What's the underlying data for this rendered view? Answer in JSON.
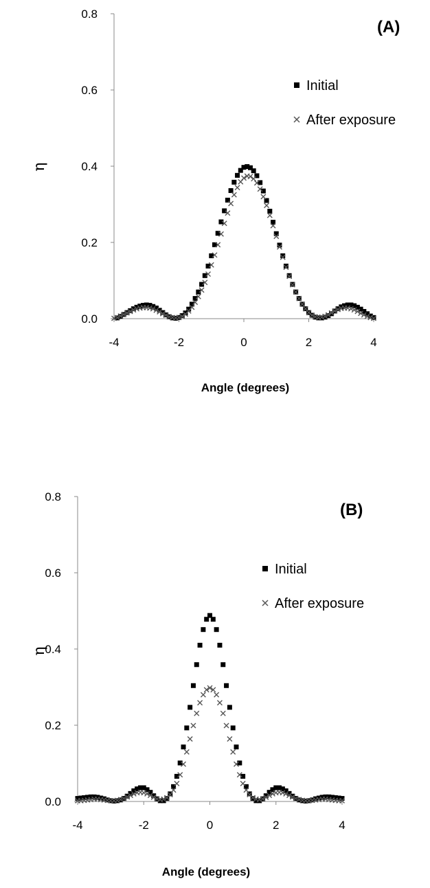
{
  "chart_data": [
    {
      "type": "scatter",
      "panel_label": "(A)",
      "xlabel": "Angle (degrees)",
      "ylabel": "η",
      "xlim": [
        -4,
        4
      ],
      "ylim": [
        0,
        0.8
      ],
      "xticks": [
        "-4",
        "-2",
        "0",
        "2",
        "4"
      ],
      "yticks": [
        "0.0",
        "0.2",
        "0.4",
        "0.6",
        "0.8"
      ],
      "legend_position": "right, below panel label",
      "series": [
        {
          "name": "Initial",
          "marker": "square",
          "color": "#000000",
          "x": [
            -3.9,
            -3.8,
            -3.7,
            -3.6,
            -3.5,
            -3.4,
            -3.3,
            -3.2,
            -3.1,
            -3.0,
            -2.9,
            -2.8,
            -2.7,
            -2.6,
            -2.5,
            -2.4,
            -2.3,
            -2.2,
            -2.1,
            -2.0,
            -1.9,
            -1.8,
            -1.7,
            -1.6,
            -1.5,
            -1.4,
            -1.3,
            -1.2,
            -1.1,
            -1.0,
            -0.9,
            -0.8,
            -0.7,
            -0.6,
            -0.5,
            -0.4,
            -0.3,
            -0.2,
            -0.1,
            0.0,
            0.1,
            0.2,
            0.3,
            0.4,
            0.5,
            0.6,
            0.7,
            0.8,
            0.9,
            1.0,
            1.1,
            1.2,
            1.3,
            1.4,
            1.5,
            1.6,
            1.7,
            1.8,
            1.9,
            2.0,
            2.1,
            2.2,
            2.3,
            2.4,
            2.5,
            2.6,
            2.7,
            2.8,
            2.9,
            3.0,
            3.1,
            3.2,
            3.3,
            3.4,
            3.5,
            3.6,
            3.7,
            3.8,
            3.9,
            4.0
          ],
          "y": [
            0.002,
            0.006,
            0.011,
            0.016,
            0.021,
            0.026,
            0.03,
            0.033,
            0.035,
            0.036,
            0.035,
            0.032,
            0.028,
            0.022,
            0.016,
            0.01,
            0.005,
            0.002,
            0.001,
            0.003,
            0.008,
            0.015,
            0.025,
            0.038,
            0.053,
            0.07,
            0.09,
            0.113,
            0.138,
            0.165,
            0.194,
            0.224,
            0.254,
            0.283,
            0.311,
            0.336,
            0.358,
            0.376,
            0.389,
            0.397,
            0.399,
            0.396,
            0.388,
            0.375,
            0.357,
            0.335,
            0.31,
            0.282,
            0.253,
            0.223,
            0.193,
            0.165,
            0.138,
            0.113,
            0.09,
            0.07,
            0.053,
            0.038,
            0.026,
            0.016,
            0.009,
            0.004,
            0.002,
            0.002,
            0.004,
            0.008,
            0.013,
            0.02,
            0.026,
            0.031,
            0.034,
            0.036,
            0.036,
            0.034,
            0.03,
            0.025,
            0.019,
            0.013,
            0.007,
            0.003
          ]
        },
        {
          "name": "After exposure",
          "marker": "x",
          "color": "#555555",
          "x": [
            -4.0,
            -3.9,
            -3.8,
            -3.7,
            -3.6,
            -3.5,
            -3.4,
            -3.3,
            -3.2,
            -3.1,
            -3.0,
            -2.9,
            -2.8,
            -2.7,
            -2.6,
            -2.5,
            -2.4,
            -2.3,
            -2.2,
            -2.1,
            -2.0,
            -1.9,
            -1.8,
            -1.7,
            -1.6,
            -1.5,
            -1.4,
            -1.3,
            -1.2,
            -1.1,
            -1.0,
            -0.9,
            -0.8,
            -0.7,
            -0.6,
            -0.5,
            -0.4,
            -0.3,
            -0.2,
            -0.1,
            0.0,
            0.1,
            0.2,
            0.3,
            0.4,
            0.5,
            0.6,
            0.7,
            0.8,
            0.9,
            1.0,
            1.1,
            1.2,
            1.3,
            1.4,
            1.5,
            1.6,
            1.7,
            1.8,
            1.9,
            2.0,
            2.1,
            2.2,
            2.3,
            2.4,
            2.5,
            2.6,
            2.7,
            2.8,
            2.9,
            3.0,
            3.1,
            3.2,
            3.3,
            3.4,
            3.5,
            3.6,
            3.7,
            3.8,
            3.9,
            4.0
          ],
          "y": [
            0.001,
            0.003,
            0.007,
            0.011,
            0.015,
            0.019,
            0.023,
            0.026,
            0.028,
            0.029,
            0.029,
            0.028,
            0.026,
            0.022,
            0.018,
            0.013,
            0.009,
            0.005,
            0.003,
            0.002,
            0.003,
            0.006,
            0.012,
            0.02,
            0.03,
            0.043,
            0.058,
            0.075,
            0.095,
            0.117,
            0.141,
            0.167,
            0.194,
            0.222,
            0.25,
            0.277,
            0.302,
            0.325,
            0.344,
            0.359,
            0.369,
            0.374,
            0.373,
            0.367,
            0.356,
            0.34,
            0.32,
            0.297,
            0.271,
            0.244,
            0.216,
            0.188,
            0.161,
            0.135,
            0.111,
            0.089,
            0.07,
            0.053,
            0.038,
            0.026,
            0.016,
            0.009,
            0.005,
            0.003,
            0.004,
            0.006,
            0.01,
            0.015,
            0.02,
            0.024,
            0.027,
            0.028,
            0.028,
            0.026,
            0.023,
            0.019,
            0.014,
            0.01,
            0.006,
            0.003,
            0.001
          ]
        }
      ]
    },
    {
      "type": "scatter",
      "panel_label": "(B)",
      "xlabel": "Angle (degrees)",
      "ylabel": "η",
      "xlim": [
        -4,
        4
      ],
      "ylim": [
        0,
        0.8
      ],
      "xticks": [
        "-4",
        "-2",
        "0",
        "2",
        "4"
      ],
      "yticks": [
        "0.0",
        "0.2",
        "0.4",
        "0.6",
        "0.8"
      ],
      "legend_position": "right, below panel label",
      "series": [
        {
          "name": "Initial",
          "marker": "square",
          "color": "#000000",
          "x": [
            -4.0,
            -3.9,
            -3.8,
            -3.7,
            -3.6,
            -3.5,
            -3.4,
            -3.3,
            -3.2,
            -3.1,
            -3.0,
            -2.9,
            -2.8,
            -2.7,
            -2.6,
            -2.5,
            -2.4,
            -2.3,
            -2.2,
            -2.1,
            -2.0,
            -1.9,
            -1.8,
            -1.7,
            -1.6,
            -1.5,
            -1.4,
            -1.3,
            -1.2,
            -1.1,
            -1.0,
            -0.9,
            -0.8,
            -0.7,
            -0.6,
            -0.5,
            -0.4,
            -0.3,
            -0.2,
            -0.1,
            0.0,
            0.1,
            0.2,
            0.3,
            0.4,
            0.5,
            0.6,
            0.7,
            0.8,
            0.9,
            1.0,
            1.1,
            1.2,
            1.3,
            1.4,
            1.5,
            1.6,
            1.7,
            1.8,
            1.9,
            2.0,
            2.1,
            2.2,
            2.3,
            2.4,
            2.5,
            2.6,
            2.7,
            2.8,
            2.9,
            3.0,
            3.1,
            3.2,
            3.3,
            3.4,
            3.5,
            3.6,
            3.7,
            3.8,
            3.9,
            4.0
          ],
          "y": [
            0.008,
            0.009,
            0.01,
            0.011,
            0.012,
            0.012,
            0.011,
            0.009,
            0.007,
            0.004,
            0.002,
            0.001,
            0.002,
            0.004,
            0.008,
            0.014,
            0.021,
            0.028,
            0.033,
            0.036,
            0.036,
            0.031,
            0.024,
            0.015,
            0.007,
            0.002,
            0.002,
            0.008,
            0.02,
            0.039,
            0.066,
            0.101,
            0.143,
            0.193,
            0.247,
            0.304,
            0.359,
            0.41,
            0.451,
            0.478,
            0.488,
            0.478,
            0.451,
            0.41,
            0.359,
            0.304,
            0.247,
            0.193,
            0.143,
            0.101,
            0.066,
            0.039,
            0.02,
            0.008,
            0.002,
            0.002,
            0.007,
            0.015,
            0.024,
            0.031,
            0.036,
            0.036,
            0.033,
            0.028,
            0.021,
            0.014,
            0.008,
            0.004,
            0.002,
            0.001,
            0.002,
            0.004,
            0.007,
            0.009,
            0.011,
            0.012,
            0.012,
            0.011,
            0.01,
            0.009,
            0.008
          ]
        },
        {
          "name": "After exposure",
          "marker": "x",
          "color": "#555555",
          "x": [
            -4.0,
            -3.9,
            -3.8,
            -3.7,
            -3.6,
            -3.5,
            -3.4,
            -3.3,
            -3.2,
            -3.1,
            -3.0,
            -2.9,
            -2.8,
            -2.7,
            -2.6,
            -2.5,
            -2.4,
            -2.3,
            -2.2,
            -2.1,
            -2.0,
            -1.9,
            -1.8,
            -1.7,
            -1.6,
            -1.5,
            -1.4,
            -1.3,
            -1.2,
            -1.1,
            -1.0,
            -0.9,
            -0.8,
            -0.7,
            -0.6,
            -0.5,
            -0.4,
            -0.3,
            -0.2,
            -0.1,
            0.0,
            0.1,
            0.2,
            0.3,
            0.4,
            0.5,
            0.6,
            0.7,
            0.8,
            0.9,
            1.0,
            1.1,
            1.2,
            1.3,
            1.4,
            1.5,
            1.6,
            1.7,
            1.8,
            1.9,
            2.0,
            2.1,
            2.2,
            2.3,
            2.4,
            2.5,
            2.6,
            2.7,
            2.8,
            2.9,
            3.0,
            3.1,
            3.2,
            3.3,
            3.4,
            3.5,
            3.6,
            3.7,
            3.8,
            3.9,
            4.0
          ],
          "y": [
            0.002,
            0.002,
            0.003,
            0.004,
            0.005,
            0.006,
            0.006,
            0.005,
            0.004,
            0.003,
            0.002,
            0.002,
            0.003,
            0.005,
            0.008,
            0.012,
            0.016,
            0.02,
            0.023,
            0.024,
            0.023,
            0.02,
            0.016,
            0.011,
            0.007,
            0.005,
            0.006,
            0.01,
            0.018,
            0.03,
            0.047,
            0.07,
            0.098,
            0.13,
            0.164,
            0.199,
            0.231,
            0.259,
            0.28,
            0.293,
            0.298,
            0.293,
            0.28,
            0.259,
            0.231,
            0.199,
            0.164,
            0.13,
            0.098,
            0.07,
            0.047,
            0.03,
            0.018,
            0.01,
            0.006,
            0.005,
            0.007,
            0.011,
            0.016,
            0.02,
            0.023,
            0.024,
            0.023,
            0.02,
            0.016,
            0.012,
            0.008,
            0.005,
            0.003,
            0.002,
            0.002,
            0.003,
            0.004,
            0.005,
            0.006,
            0.006,
            0.005,
            0.004,
            0.003,
            0.002,
            0.002
          ]
        }
      ]
    }
  ]
}
